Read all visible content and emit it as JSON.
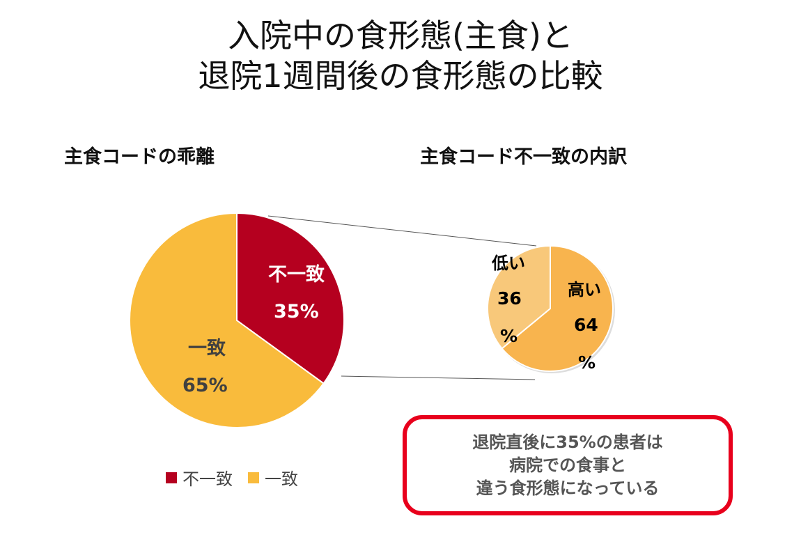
{
  "title_lines": [
    "入院中の食形態(主食)と",
    "退院1週間後の食形態の比較"
  ],
  "chart_data": [
    {
      "type": "pie",
      "title": "主食コードの乖離",
      "slices": [
        {
          "label": "不一致",
          "value": 35,
          "display": "35%",
          "color": "#B5001F"
        },
        {
          "label": "一致",
          "value": 65,
          "display": "65%",
          "color": "#F9BB3C"
        }
      ],
      "legend": [
        "不一致",
        "一致"
      ],
      "legend_position": "bottom"
    },
    {
      "type": "pie",
      "title": "主食コード不一致の内訳",
      "slices": [
        {
          "label": "高い",
          "value": 64,
          "display": [
            "64",
            "%"
          ],
          "color": "#F8B44E"
        },
        {
          "label": "低い",
          "value": 36,
          "display": [
            "36",
            "%"
          ],
          "color": "#F8C87A"
        }
      ]
    }
  ],
  "callout": [
    "退院直後に35%の患者は",
    "病院での食事と",
    "違う食形態になっている"
  ]
}
